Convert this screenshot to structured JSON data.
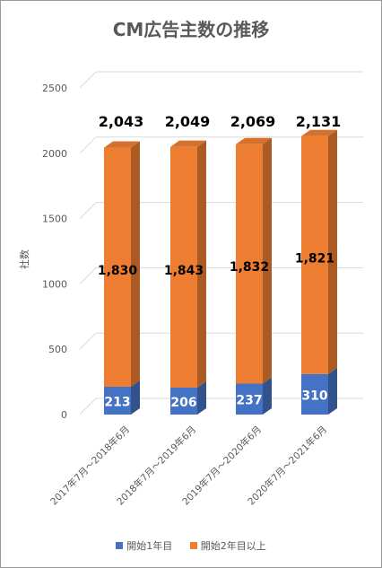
{
  "colors": {
    "series0": "#4472C4",
    "series1": "#ED7D31",
    "grid": "#D9D9D9",
    "axis_text": "#595959"
  },
  "chart_data": {
    "type": "bar",
    "stacked": true,
    "title": "CM広告主数の推移",
    "xlabel": "",
    "ylabel": "社数",
    "ylim": [
      0,
      2500
    ],
    "yticks": [
      0,
      500,
      1000,
      1500,
      2000,
      2500
    ],
    "grid": true,
    "legend": "bottom",
    "categories": [
      "2017年7月～2018年6月",
      "2018年7月～2019年6月",
      "2019年7月～2020年6月",
      "2020年7月～2021年6月"
    ],
    "series": [
      {
        "name": "開始1年目",
        "values": [
          213,
          206,
          237,
          310
        ]
      },
      {
        "name": "開始2年目以上",
        "values": [
          1830,
          1843,
          1832,
          1821
        ]
      }
    ],
    "totals": [
      2043,
      2049,
      2069,
      2131
    ],
    "total_labels": [
      "2,043",
      "2,049",
      "2,069",
      "2,131"
    ],
    "value_labels": [
      [
        "213",
        "206",
        "237",
        "310"
      ],
      [
        "1,830",
        "1,843",
        "1,832",
        "1,821"
      ]
    ]
  }
}
